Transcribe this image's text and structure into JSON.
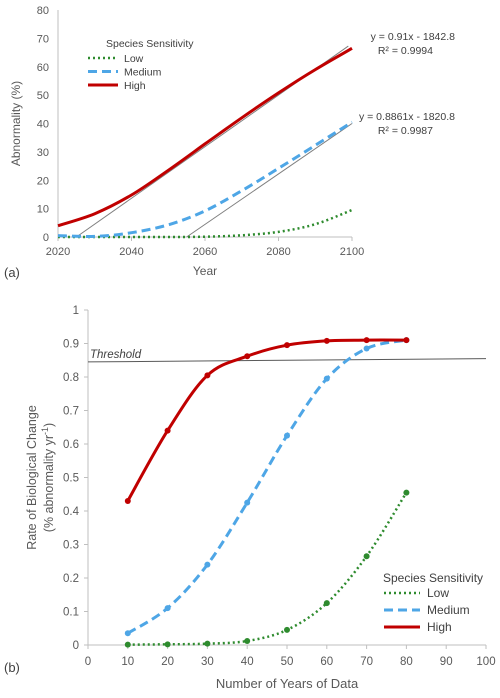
{
  "chart_data": [
    {
      "panel_label": "(a)",
      "type": "line",
      "xlabel": "Year",
      "ylabel": "Abnormality (%)",
      "xlim": [
        2020,
        2100
      ],
      "ylim": [
        0,
        80
      ],
      "xticks": [
        "2020",
        "2040",
        "2060",
        "2080",
        "2100"
      ],
      "yticks": [
        "0",
        "10",
        "20",
        "30",
        "40",
        "50",
        "60",
        "70",
        "80"
      ],
      "legend_title": "Species Sensitivity",
      "legend_position": "top-left",
      "series": [
        {
          "name": "Low",
          "style": "dotted",
          "color": "#2e8b2e",
          "x": [
            2020,
            2030,
            2040,
            2050,
            2060,
            2070,
            2080,
            2090,
            2100
          ],
          "y": [
            0,
            0,
            0,
            0,
            0.1,
            0.6,
            1.8,
            4.5,
            9.5
          ]
        },
        {
          "name": "Medium",
          "style": "dashed",
          "color": "#4ea6e6",
          "x": [
            2020,
            2030,
            2040,
            2050,
            2060,
            2070,
            2080,
            2090,
            2100
          ],
          "y": [
            0.5,
            0.2,
            1.5,
            4.3,
            9.2,
            16.3,
            24.2,
            32.3,
            40.5
          ]
        },
        {
          "name": "High",
          "style": "solid",
          "color": "#c00000",
          "x": [
            2020,
            2030,
            2040,
            2050,
            2060,
            2070,
            2080,
            2090,
            2100
          ],
          "y": [
            4,
            8.2,
            14.8,
            23.5,
            32.8,
            42,
            50.8,
            59,
            66.5
          ]
        }
      ],
      "trendlines": [
        {
          "equation": "y = 0.91x - 1842.8",
          "r2": "R² = 0.9994",
          "x": [
            2025,
            2099
          ],
          "y": [
            0,
            67.3
          ]
        },
        {
          "equation": "y = 0.8861x - 1820.8",
          "r2": "R² = 0.9987",
          "x": [
            2055,
            2100
          ],
          "y": [
            0,
            40
          ]
        }
      ]
    },
    {
      "panel_label": "(b)",
      "type": "line",
      "xlabel": "Number of Years of Data",
      "ylabel": "Rate of Biological Change",
      "ylabel2_prefix": "(% abnormality yr",
      "ylabel2_sup": "-1",
      "ylabel2_suffix": ")",
      "xlim": [
        0,
        100
      ],
      "ylim": [
        0,
        1
      ],
      "xticks": [
        "0",
        "10",
        "20",
        "30",
        "40",
        "50",
        "60",
        "70",
        "80",
        "90",
        "100"
      ],
      "yticks": [
        "0",
        "0.1",
        "0.2",
        "0.3",
        "0.4",
        "0.5",
        "0.6",
        "0.7",
        "0.8",
        "0.9",
        "1"
      ],
      "threshold_label": "Threshold",
      "threshold_line": {
        "x": [
          0,
          100
        ],
        "y": [
          0.845,
          0.855
        ]
      },
      "legend_title": "Species Sensitivity",
      "legend_position": "bottom-right",
      "series": [
        {
          "name": "Low",
          "style": "dotted",
          "color": "#2e8b2e",
          "x": [
            10,
            20,
            30,
            40,
            50,
            60,
            70,
            80
          ],
          "y": [
            0.001,
            0.002,
            0.004,
            0.012,
            0.045,
            0.125,
            0.265,
            0.455
          ]
        },
        {
          "name": "Medium",
          "style": "dashed",
          "color": "#4ea6e6",
          "x": [
            10,
            20,
            30,
            40,
            50,
            60,
            70,
            80
          ],
          "y": [
            0.035,
            0.11,
            0.24,
            0.425,
            0.625,
            0.795,
            0.885,
            0.91
          ]
        },
        {
          "name": "High",
          "style": "solid",
          "color": "#c00000",
          "x": [
            10,
            20,
            30,
            40,
            50,
            60,
            70,
            80
          ],
          "y": [
            0.43,
            0.64,
            0.805,
            0.862,
            0.895,
            0.908,
            0.91,
            0.91
          ]
        }
      ]
    }
  ]
}
